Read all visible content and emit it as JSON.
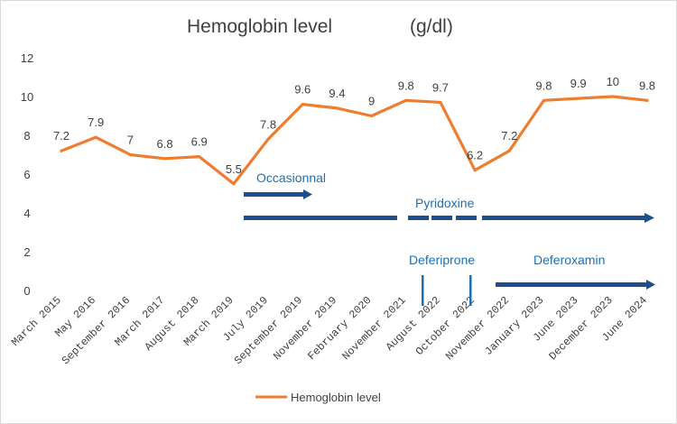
{
  "chart_data": {
    "type": "line",
    "title": "Hemoglobin level",
    "title_unit": "(g/dl)",
    "ylim": [
      0,
      12
    ],
    "yticks": [
      0,
      2,
      4,
      6,
      8,
      10,
      12
    ],
    "categories": [
      "March 2015",
      "May 2016",
      "September 2016",
      "March 2017",
      "August 2018",
      "March 2019",
      "July 2019",
      "September 2019",
      "November 2019",
      "February 2020",
      "November 2021",
      "August 2022",
      "October 2022",
      "November 2022",
      "January 2023",
      "June 2023",
      "December 2023",
      "June 2024"
    ],
    "series": [
      {
        "name": "Hemoglobin level",
        "color": "#ed7d31",
        "values": [
          7.2,
          7.9,
          7,
          6.8,
          6.9,
          5.5,
          7.8,
          9.6,
          9.4,
          9,
          9.8,
          9.7,
          6.2,
          7.2,
          9.8,
          9.9,
          10,
          9.8
        ]
      }
    ],
    "legend": {
      "label": "Hemoglobin level",
      "position": "bottom"
    },
    "annotations": [
      {
        "id": "occasionnal",
        "text": "Occasionnal",
        "color": "#1f6fb2"
      },
      {
        "id": "pyridoxine",
        "text": "Pyridoxine",
        "color": "#1f6fb2"
      },
      {
        "id": "deferiprone",
        "text": "Deferiprone",
        "color": "#1f6fb2"
      },
      {
        "id": "deferoxamin",
        "text": "Deferoxamin",
        "color": "#1f6fb2"
      }
    ],
    "arrow_color": "#1f4e8c"
  }
}
